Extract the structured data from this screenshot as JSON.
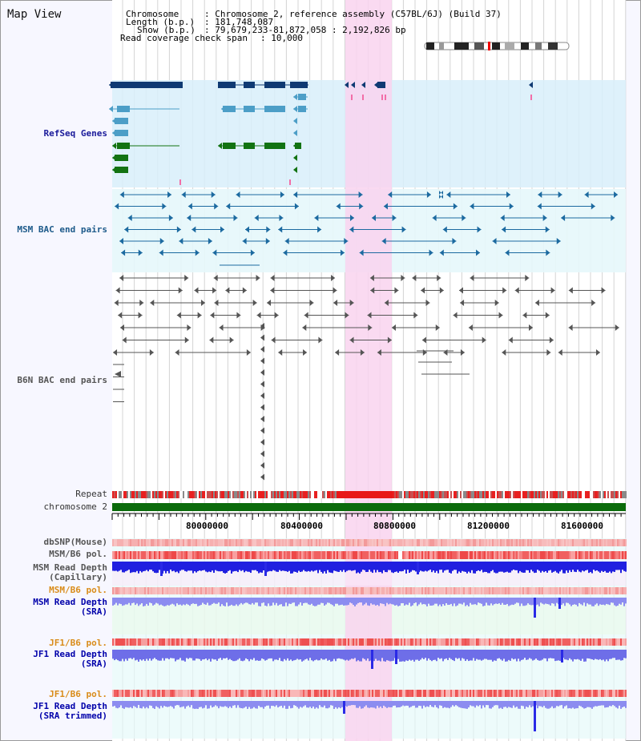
{
  "title": "Map View",
  "header": {
    "chromosome_key": "Chromosome",
    "chromosome_val": ": Chromosome 2, reference assembly (C57BL/6J) (Build 37)",
    "length_key": "Length (b.p.)",
    "length_val": ": 181,748,087",
    "show_key": "Show (b.p.)",
    "show_val": ": 79,679,233-81,872,058 : 2,192,826 bp",
    "coverage_key": "Read coverage check span",
    "coverage_val": ": 10,000"
  },
  "tracks": {
    "refseq": "RefSeq Genes",
    "msm_bac": "MSM BAC end pairs",
    "b6n_bac": "B6N BAC end pairs",
    "repeat": "Repeat",
    "chromosome": "chromosome 2",
    "dbsnp": "dbSNP(Mouse)",
    "msm_b6_pol_1": "MSM/B6 pol.",
    "msm_read_depth_cap_1": "MSM Read Depth",
    "msm_read_depth_cap_2": "(Capillary)",
    "msm_b6_pol_2": "MSM/B6 pol.",
    "msm_read_depth_sra_1": "MSM Read Depth",
    "msm_read_depth_sra_2": "(SRA)",
    "jf1_b6_pol_1": "JF1/B6 pol.",
    "jf1_read_depth_sra_1": "JF1 Read Depth",
    "jf1_read_depth_sra_2": "(SRA)",
    "jf1_b6_pol_2": "JF1/B6 pol.",
    "jf1_read_depth_trim_1": "JF1 Read Depth",
    "jf1_read_depth_trim_2": "(SRA trimmed)"
  },
  "scale_ticks": [
    "80000000",
    "80400000",
    "80800000",
    "81200000",
    "81600000"
  ],
  "colors": {
    "highlight": "#f9d9f0",
    "refseq_bg": "#d8eefa",
    "msm_bg": "#e6f7fb",
    "gene_dark": "#0f3a73",
    "gene_light": "#4c9ec7",
    "gene_green": "#127312",
    "bac_teal": "#1c6aa0",
    "bac_gray": "#555555",
    "chromosome_green": "#0b6b0b",
    "depth_blue": "#2a2ae6",
    "depth_light": "#8c8cf0"
  }
}
